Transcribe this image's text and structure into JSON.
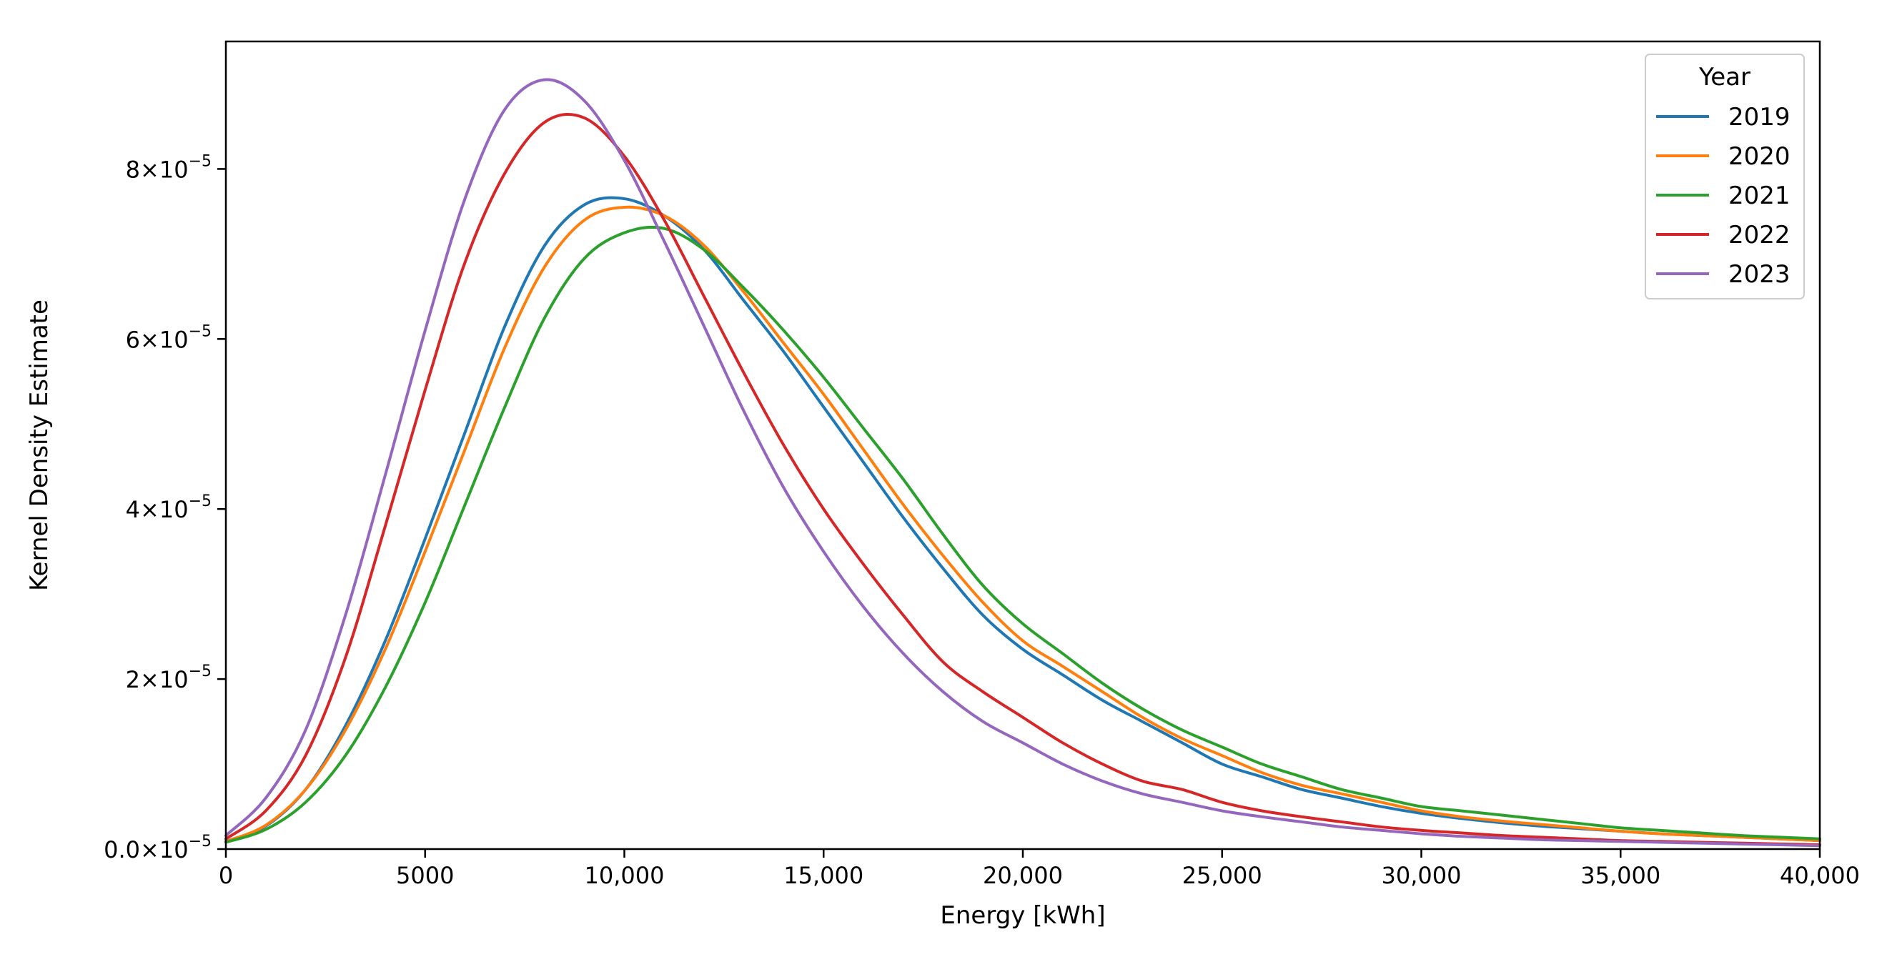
{
  "chart_data": {
    "type": "line",
    "title": "",
    "xlabel": "Energy [kWh]",
    "ylabel": "Kernel Density Estimate",
    "xlim": [
      0,
      40000
    ],
    "ylim": [
      0,
      9.5e-05
    ],
    "grid": false,
    "x_ticks": [
      0,
      5000,
      10000,
      15000,
      20000,
      25000,
      30000,
      35000,
      40000
    ],
    "x_tick_labels": [
      "0",
      "5000",
      "10,000",
      "15,000",
      "20,000",
      "25,000",
      "30,000",
      "35,000",
      "40,000"
    ],
    "y_ticks": [
      0,
      2e-05,
      4e-05,
      6e-05,
      8e-05
    ],
    "y_tick_mantissas": [
      "0.0",
      "2",
      "4",
      "6",
      "8"
    ],
    "y_tick_base": "10",
    "y_tick_exponent": "−5",
    "legend": {
      "title": "Year",
      "placement": "top-right"
    },
    "x": [
      0,
      1000,
      2000,
      3000,
      4000,
      5000,
      6000,
      7000,
      8000,
      9000,
      10000,
      11000,
      12000,
      13000,
      14000,
      15000,
      16000,
      17000,
      18000,
      19000,
      20000,
      21000,
      22000,
      23000,
      24000,
      25000,
      26000,
      27000,
      28000,
      29000,
      30000,
      31000,
      32000,
      33000,
      34000,
      35000,
      36000,
      37000,
      38000,
      39000,
      40000
    ],
    "series": [
      {
        "name": "2019",
        "color": "#1f77b4",
        "values": [
          9e-07,
          2.7e-06,
          7e-06,
          1.45e-05,
          2.45e-05,
          3.65e-05,
          4.9e-05,
          6.15e-05,
          7.1e-05,
          7.58e-05,
          7.65e-05,
          7.45e-05,
          7.05e-05,
          6.45e-05,
          5.85e-05,
          5.2e-05,
          4.55e-05,
          3.9e-05,
          3.3e-05,
          2.75e-05,
          2.35e-05,
          2.05e-05,
          1.75e-05,
          1.5e-05,
          1.25e-05,
          1e-05,
          8.5e-06,
          7e-06,
          6e-06,
          5e-06,
          4.2e-06,
          3.6e-06,
          3.1e-06,
          2.7e-06,
          2.4e-06,
          2.1e-06,
          1.8e-06,
          1.6e-06,
          1.4e-06,
          1.2e-06,
          1e-06
        ]
      },
      {
        "name": "2020",
        "color": "#ff7f0e",
        "values": [
          9e-07,
          2.8e-06,
          7e-06,
          1.4e-05,
          2.35e-05,
          3.5e-05,
          4.7e-05,
          5.9e-05,
          6.85e-05,
          7.4e-05,
          7.55e-05,
          7.45e-05,
          7.1e-05,
          6.55e-05,
          5.95e-05,
          5.35e-05,
          4.7e-05,
          4.05e-05,
          3.45e-05,
          2.9e-05,
          2.45e-05,
          2.15e-05,
          1.85e-05,
          1.55e-05,
          1.3e-05,
          1.1e-05,
          9e-06,
          7.5e-06,
          6.5e-06,
          5.5e-06,
          4.5e-06,
          3.8e-06,
          3.3e-06,
          2.9e-06,
          2.5e-06,
          2.1e-06,
          1.8e-06,
          1.6e-06,
          1.4e-06,
          1.2e-06,
          1e-06
        ]
      },
      {
        "name": "2021",
        "color": "#2ca02c",
        "values": [
          8e-07,
          2.3e-06,
          5.5e-06,
          1.1e-05,
          1.9e-05,
          2.9e-05,
          4.05e-05,
          5.2e-05,
          6.25e-05,
          6.95e-05,
          7.25e-05,
          7.3e-05,
          7.05e-05,
          6.6e-05,
          6.1e-05,
          5.55e-05,
          4.95e-05,
          4.35e-05,
          3.7e-05,
          3.1e-05,
          2.65e-05,
          2.3e-05,
          1.95e-05,
          1.65e-05,
          1.4e-05,
          1.2e-05,
          1e-05,
          8.5e-06,
          7e-06,
          6e-06,
          5e-06,
          4.5e-06,
          4e-06,
          3.5e-06,
          3e-06,
          2.5e-06,
          2.2e-06,
          1.9e-06,
          1.6e-06,
          1.4e-06,
          1.2e-06
        ]
      },
      {
        "name": "2022",
        "color": "#d62728",
        "values": [
          1.2e-06,
          4.5e-06,
          1.1e-05,
          2.25e-05,
          3.8e-05,
          5.4e-05,
          6.9e-05,
          7.95e-05,
          8.55e-05,
          8.6e-05,
          8.15e-05,
          7.4e-05,
          6.5e-05,
          5.6e-05,
          4.75e-05,
          4e-05,
          3.35e-05,
          2.75e-05,
          2.2e-05,
          1.85e-05,
          1.55e-05,
          1.25e-05,
          1e-05,
          8e-06,
          7e-06,
          5.5e-06,
          4.5e-06,
          3.8e-06,
          3.2e-06,
          2.6e-06,
          2.2e-06,
          1.9e-06,
          1.6e-06,
          1.4e-06,
          1.2e-06,
          1e-06,
          9e-07,
          8e-07,
          7e-07,
          6e-07,
          5e-07
        ]
      },
      {
        "name": "2023",
        "color": "#9467bd",
        "values": [
          1.6e-06,
          6e-06,
          1.4e-05,
          2.75e-05,
          4.4e-05,
          6.1e-05,
          7.65e-05,
          8.7e-05,
          9.05e-05,
          8.8e-05,
          8.1e-05,
          7.15e-05,
          6.15e-05,
          5.15e-05,
          4.25e-05,
          3.5e-05,
          2.85e-05,
          2.3e-05,
          1.85e-05,
          1.5e-05,
          1.25e-05,
          1e-05,
          8e-06,
          6.5e-06,
          5.5e-06,
          4.5e-06,
          3.8e-06,
          3.2e-06,
          2.6e-06,
          2.2e-06,
          1.8e-06,
          1.5e-06,
          1.3e-06,
          1.1e-06,
          1e-06,
          9e-07,
          8e-07,
          7e-07,
          6e-07,
          5e-07,
          4e-07
        ]
      }
    ]
  }
}
